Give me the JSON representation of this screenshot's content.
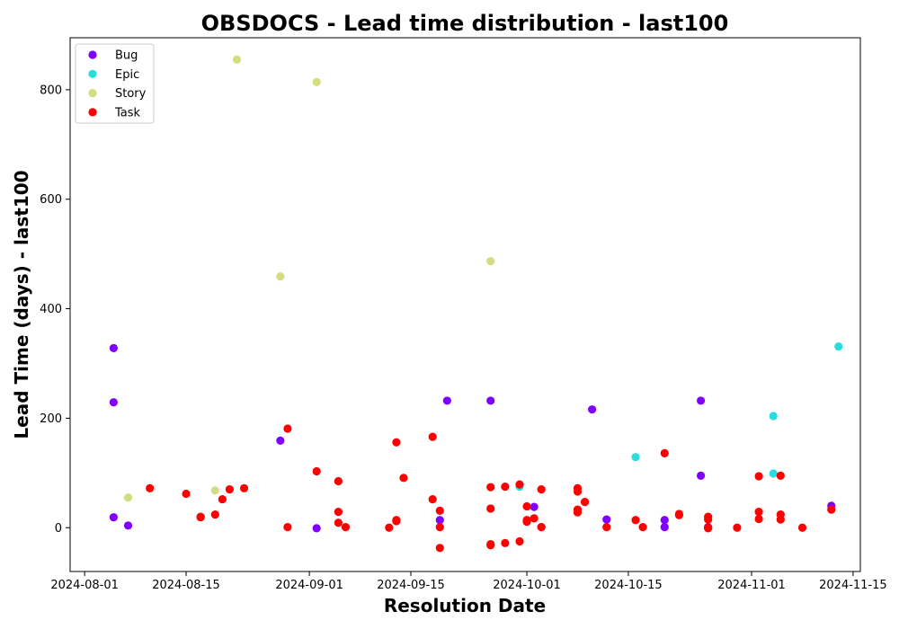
{
  "chart_data": {
    "type": "scatter",
    "title": "OBSDOCS - Lead time distribution - last100",
    "xlabel": "Resolution Date",
    "ylabel": "Lead Time (days) - last100",
    "x_ticks": [
      "2024-08-01",
      "2024-08-15",
      "2024-09-01",
      "2024-09-15",
      "2024-10-01",
      "2024-10-15",
      "2024-11-01",
      "2024-11-15"
    ],
    "y_ticks": [
      0,
      200,
      400,
      600,
      800
    ],
    "xlim": [
      "2024-07-30",
      "2024-11-16"
    ],
    "ylim": [
      -80,
      895
    ],
    "grid": false,
    "legend_position": "top-left",
    "series": [
      {
        "name": "Bug",
        "color": "#8000ff",
        "points": [
          {
            "x": "2024-08-05",
            "y": 229
          },
          {
            "x": "2024-08-05",
            "y": 328
          },
          {
            "x": "2024-08-05",
            "y": 19
          },
          {
            "x": "2024-08-07",
            "y": 4
          },
          {
            "x": "2024-08-28",
            "y": 159
          },
          {
            "x": "2024-09-02",
            "y": -1
          },
          {
            "x": "2024-09-19",
            "y": 14
          },
          {
            "x": "2024-09-20",
            "y": 232
          },
          {
            "x": "2024-09-26",
            "y": 232
          },
          {
            "x": "2024-10-02",
            "y": 38
          },
          {
            "x": "2024-10-03",
            "y": 1
          },
          {
            "x": "2024-10-10",
            "y": 216
          },
          {
            "x": "2024-10-12",
            "y": 15
          },
          {
            "x": "2024-10-20",
            "y": 14
          },
          {
            "x": "2024-10-20",
            "y": 1
          },
          {
            "x": "2024-10-25",
            "y": 95
          },
          {
            "x": "2024-10-25",
            "y": 232
          },
          {
            "x": "2024-10-26",
            "y": 1
          },
          {
            "x": "2024-11-12",
            "y": 40
          }
        ]
      },
      {
        "name": "Epic",
        "color": "#2adddd",
        "points": [
          {
            "x": "2024-09-30",
            "y": 75
          },
          {
            "x": "2024-10-16",
            "y": 129
          },
          {
            "x": "2024-11-04",
            "y": 204
          },
          {
            "x": "2024-11-04",
            "y": 99
          },
          {
            "x": "2024-11-13",
            "y": 331
          }
        ]
      },
      {
        "name": "Story",
        "color": "#d4dd80",
        "points": [
          {
            "x": "2024-08-07",
            "y": 55
          },
          {
            "x": "2024-08-19",
            "y": 68
          },
          {
            "x": "2024-08-22",
            "y": 855
          },
          {
            "x": "2024-08-28",
            "y": 459
          },
          {
            "x": "2024-09-02",
            "y": 814
          },
          {
            "x": "2024-09-26",
            "y": 487
          }
        ]
      },
      {
        "name": "Task",
        "color": "#ff0000",
        "points": [
          {
            "x": "2024-08-10",
            "y": 72
          },
          {
            "x": "2024-08-15",
            "y": 62
          },
          {
            "x": "2024-08-17",
            "y": 19
          },
          {
            "x": "2024-08-17",
            "y": 20
          },
          {
            "x": "2024-08-19",
            "y": 24
          },
          {
            "x": "2024-08-20",
            "y": 52
          },
          {
            "x": "2024-08-21",
            "y": 70
          },
          {
            "x": "2024-08-23",
            "y": 72
          },
          {
            "x": "2024-08-29",
            "y": 181
          },
          {
            "x": "2024-08-29",
            "y": 1
          },
          {
            "x": "2024-09-02",
            "y": 103
          },
          {
            "x": "2024-09-05",
            "y": 85
          },
          {
            "x": "2024-09-05",
            "y": 29
          },
          {
            "x": "2024-09-05",
            "y": 9
          },
          {
            "x": "2024-09-06",
            "y": 1
          },
          {
            "x": "2024-09-12",
            "y": 0
          },
          {
            "x": "2024-09-13",
            "y": 156
          },
          {
            "x": "2024-09-13",
            "y": 14
          },
          {
            "x": "2024-09-13",
            "y": 12
          },
          {
            "x": "2024-09-14",
            "y": 91
          },
          {
            "x": "2024-09-18",
            "y": 166
          },
          {
            "x": "2024-09-18",
            "y": 52
          },
          {
            "x": "2024-09-19",
            "y": 31
          },
          {
            "x": "2024-09-19",
            "y": 1
          },
          {
            "x": "2024-09-19",
            "y": -37
          },
          {
            "x": "2024-09-26",
            "y": 74
          },
          {
            "x": "2024-09-26",
            "y": 35
          },
          {
            "x": "2024-09-26",
            "y": -30
          },
          {
            "x": "2024-09-26",
            "y": -32
          },
          {
            "x": "2024-09-28",
            "y": 75
          },
          {
            "x": "2024-09-28",
            "y": -28
          },
          {
            "x": "2024-09-30",
            "y": 79
          },
          {
            "x": "2024-09-30",
            "y": -25
          },
          {
            "x": "2024-10-01",
            "y": 39
          },
          {
            "x": "2024-10-01",
            "y": 11
          },
          {
            "x": "2024-10-01",
            "y": 14
          },
          {
            "x": "2024-10-02",
            "y": 17
          },
          {
            "x": "2024-10-03",
            "y": 70
          },
          {
            "x": "2024-10-03",
            "y": 1
          },
          {
            "x": "2024-10-08",
            "y": 72
          },
          {
            "x": "2024-10-08",
            "y": 66
          },
          {
            "x": "2024-10-08",
            "y": 33
          },
          {
            "x": "2024-10-08",
            "y": 28
          },
          {
            "x": "2024-10-09",
            "y": 47
          },
          {
            "x": "2024-10-12",
            "y": 1
          },
          {
            "x": "2024-10-16",
            "y": 14
          },
          {
            "x": "2024-10-17",
            "y": 1
          },
          {
            "x": "2024-10-20",
            "y": 136
          },
          {
            "x": "2024-10-22",
            "y": 25
          },
          {
            "x": "2024-10-22",
            "y": 23
          },
          {
            "x": "2024-10-26",
            "y": 20
          },
          {
            "x": "2024-10-26",
            "y": 15
          },
          {
            "x": "2024-10-26",
            "y": 0
          },
          {
            "x": "2024-10-26",
            "y": -1
          },
          {
            "x": "2024-10-30",
            "y": 0
          },
          {
            "x": "2024-11-02",
            "y": 94
          },
          {
            "x": "2024-11-02",
            "y": 29
          },
          {
            "x": "2024-11-02",
            "y": 16
          },
          {
            "x": "2024-11-05",
            "y": 95
          },
          {
            "x": "2024-11-05",
            "y": 24
          },
          {
            "x": "2024-11-05",
            "y": 15
          },
          {
            "x": "2024-11-08",
            "y": 0
          },
          {
            "x": "2024-11-12",
            "y": 33
          }
        ]
      }
    ]
  }
}
